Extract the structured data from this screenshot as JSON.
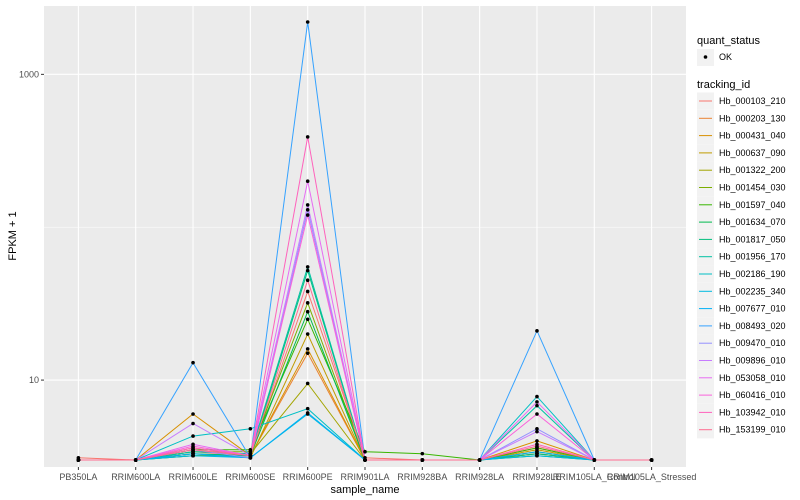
{
  "chart_data": {
    "type": "line",
    "xlabel": "sample_name",
    "ylabel": "FPKM + 1",
    "y_scale": "log10",
    "ylim": [
      2.7,
      2800
    ],
    "y_ticks": [
      {
        "value": 10,
        "label": "10"
      },
      {
        "value": 1000,
        "label": "1000"
      }
    ],
    "grid": true,
    "panel_background": "#ebebeb",
    "grid_color": "#ffffff",
    "point_color": "#000000",
    "legend_position": "right",
    "categories": [
      "PB350LA",
      "RRIM600LA",
      "RRIM600LE",
      "RRIM600SE",
      "RRIM600PE",
      "RRIM901LA",
      "RRIM928BA",
      "RRIM928LA",
      "RRIM928LE",
      "RRIM105LA_Control",
      "RRIM105LA_Stressed"
    ],
    "legends": [
      {
        "title": "quant_status",
        "type": "point",
        "items": [
          {
            "label": "OK",
            "color": "#000000"
          }
        ]
      },
      {
        "title": "tracking_id",
        "type": "line",
        "items": [
          {
            "label": "Hb_000103_210",
            "color": "#F8766D"
          },
          {
            "label": "Hb_000203_130",
            "color": "#EA8331"
          },
          {
            "label": "Hb_000431_040",
            "color": "#D89000"
          },
          {
            "label": "Hb_000637_090",
            "color": "#C09B00"
          },
          {
            "label": "Hb_001322_200",
            "color": "#A3A500"
          },
          {
            "label": "Hb_001454_030",
            "color": "#7CAE00"
          },
          {
            "label": "Hb_001597_040",
            "color": "#39B600"
          },
          {
            "label": "Hb_001634_070",
            "color": "#00BB4E"
          },
          {
            "label": "Hb_001817_050",
            "color": "#00BF7D"
          },
          {
            "label": "Hb_001956_170",
            "color": "#00C1A3"
          },
          {
            "label": "Hb_002186_190",
            "color": "#00BFC4"
          },
          {
            "label": "Hb_002235_340",
            "color": "#00BAE0"
          },
          {
            "label": "Hb_007677_010",
            "color": "#00B0F6"
          },
          {
            "label": "Hb_008493_020",
            "color": "#35A2FF"
          },
          {
            "label": "Hb_009470_010",
            "color": "#9590FF"
          },
          {
            "label": "Hb_009896_010",
            "color": "#C77CFF"
          },
          {
            "label": "Hb_053058_010",
            "color": "#E76BF3"
          },
          {
            "label": "Hb_060416_010",
            "color": "#FA62DB"
          },
          {
            "label": "Hb_103942_010",
            "color": "#FF62BC"
          },
          {
            "label": "Hb_153199_010",
            "color": "#FF6C91"
          }
        ]
      }
    ],
    "series": [
      {
        "name": "Hb_000103_210",
        "color": "#F8766D",
        "values": [
          3.1,
          3.0,
          3.4,
          3.2,
          38,
          3.1,
          3.0,
          3.0,
          3.3,
          3.0,
          3.0
        ]
      },
      {
        "name": "Hb_000203_130",
        "color": "#EA8331",
        "values": [
          3.0,
          3.0,
          3.6,
          3.2,
          15,
          3.0,
          3.0,
          3.0,
          3.6,
          3.0,
          3.0
        ]
      },
      {
        "name": "Hb_000431_040",
        "color": "#D89000",
        "values": [
          3.0,
          3.0,
          6.0,
          3.2,
          16,
          3.0,
          3.0,
          3.0,
          4.0,
          3.0,
          3.0
        ]
      },
      {
        "name": "Hb_000637_090",
        "color": "#C09B00",
        "values": [
          3.0,
          3.0,
          3.3,
          3.1,
          20,
          3.0,
          3.0,
          3.0,
          3.5,
          3.0,
          3.0
        ]
      },
      {
        "name": "Hb_001322_200",
        "color": "#A3A500",
        "values": [
          3.0,
          3.0,
          3.2,
          3.3,
          9.5,
          3.0,
          3.0,
          3.0,
          3.3,
          3.0,
          3.0
        ]
      },
      {
        "name": "Hb_001454_030",
        "color": "#7CAE00",
        "values": [
          3.0,
          3.0,
          3.4,
          3.4,
          32,
          3.0,
          3.0,
          3.0,
          3.4,
          3.0,
          3.0
        ]
      },
      {
        "name": "Hb_001597_040",
        "color": "#39B600",
        "values": [
          3.0,
          3.0,
          3.5,
          3.5,
          25,
          3.4,
          3.3,
          3.0,
          3.6,
          3.0,
          3.0
        ]
      },
      {
        "name": "Hb_001634_070",
        "color": "#00BB4E",
        "values": [
          3.0,
          3.0,
          3.3,
          3.2,
          28,
          3.0,
          3.0,
          3.0,
          3.2,
          3.0,
          3.0
        ]
      },
      {
        "name": "Hb_001817_050",
        "color": "#00BF7D",
        "values": [
          3.0,
          3.0,
          3.2,
          3.2,
          52,
          3.0,
          3.0,
          3.0,
          3.3,
          3.0,
          3.0
        ]
      },
      {
        "name": "Hb_001956_170",
        "color": "#00C1A3",
        "values": [
          3.0,
          3.0,
          3.4,
          3.3,
          55,
          3.0,
          3.0,
          3.0,
          6.8,
          3.0,
          3.0
        ]
      },
      {
        "name": "Hb_002186_190",
        "color": "#00BFC4",
        "values": [
          3.0,
          3.0,
          4.3,
          4.8,
          6.5,
          3.0,
          3.0,
          3.0,
          7.8,
          3.0,
          3.0
        ]
      },
      {
        "name": "Hb_002235_340",
        "color": "#00BAE0",
        "values": [
          3.0,
          3.0,
          3.2,
          3.1,
          6.0,
          3.0,
          3.0,
          3.0,
          3.2,
          3.0,
          3.0
        ]
      },
      {
        "name": "Hb_007677_010",
        "color": "#00B0F6",
        "values": [
          3.0,
          3.0,
          3.3,
          3.1,
          6.1,
          3.0,
          3.0,
          3.0,
          3.4,
          3.0,
          3.0
        ]
      },
      {
        "name": "Hb_008493_020",
        "color": "#35A2FF",
        "values": [
          3.0,
          3.0,
          13,
          3.1,
          2200,
          3.0,
          3.0,
          3.0,
          21,
          3.0,
          3.0
        ]
      },
      {
        "name": "Hb_009470_010",
        "color": "#9590FF",
        "values": [
          3.0,
          3.0,
          3.5,
          3.1,
          130,
          3.0,
          3.0,
          3.0,
          4.8,
          3.0,
          3.0
        ]
      },
      {
        "name": "Hb_009896_010",
        "color": "#C77CFF",
        "values": [
          3.0,
          3.0,
          5.2,
          3.2,
          140,
          3.0,
          3.0,
          3.0,
          4.6,
          3.0,
          3.0
        ]
      },
      {
        "name": "Hb_053058_010",
        "color": "#E76BF3",
        "values": [
          3.0,
          3.0,
          3.8,
          3.2,
          200,
          3.0,
          3.0,
          3.0,
          7.2,
          3.0,
          3.0
        ]
      },
      {
        "name": "Hb_060416_010",
        "color": "#FA62DB",
        "values": [
          3.0,
          3.0,
          3.7,
          3.2,
          120,
          3.0,
          3.0,
          3.0,
          6.0,
          3.0,
          3.0
        ]
      },
      {
        "name": "Hb_103942_010",
        "color": "#FF62BC",
        "values": [
          3.0,
          3.0,
          3.6,
          3.2,
          390,
          3.0,
          3.0,
          3.0,
          3.8,
          3.0,
          3.0
        ]
      },
      {
        "name": "Hb_153199_010",
        "color": "#FF6C91",
        "values": [
          3.0,
          3.0,
          3.5,
          3.2,
          45,
          3.0,
          3.0,
          3.0,
          3.7,
          3.0,
          3.0
        ]
      }
    ]
  }
}
